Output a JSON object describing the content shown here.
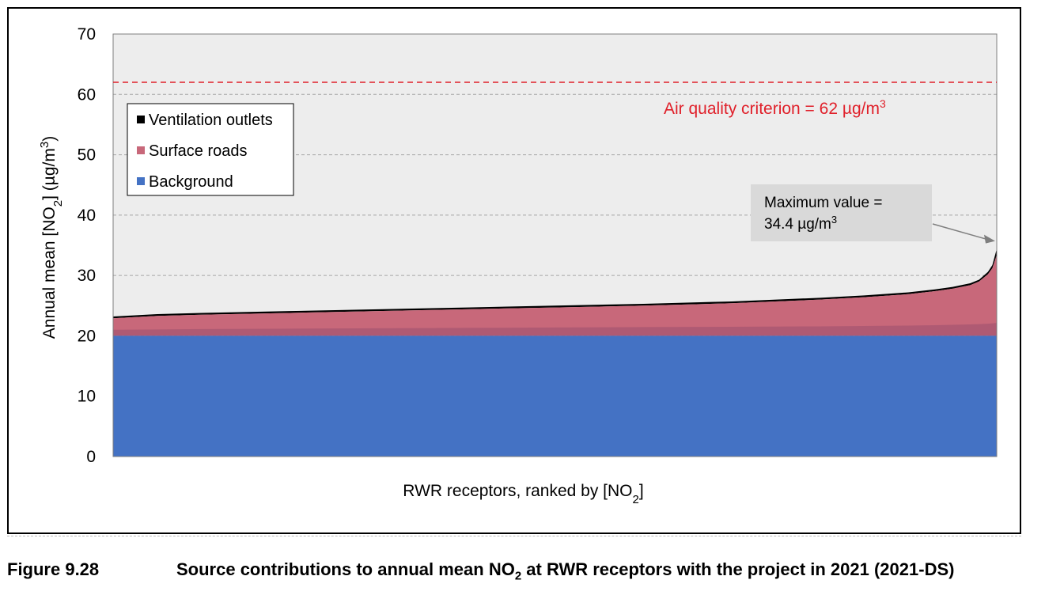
{
  "colors": {
    "background": "#4472C4",
    "surface_roads": "#C8687A",
    "surface_roads_dark": "#9A4F6E",
    "ventilation_outlets": "#000000",
    "criterion": "#E0202A",
    "plot_bg": "#EDEDED",
    "annotation_bg": "#D9D9D9"
  },
  "chart_data": {
    "type": "area",
    "stacked": true,
    "x_description": "receptors ranked by total NO2 (no x tick labels shown)",
    "xlabel_parts": [
      "RWR receptors, ranked by [NO",
      "2",
      "]"
    ],
    "ylabel_parts": [
      "Annual mean [NO",
      "2",
      "] (µg/m",
      "3",
      ")"
    ],
    "ylim": [
      0,
      70
    ],
    "yticks": [
      0,
      10,
      20,
      30,
      40,
      50,
      60,
      70
    ],
    "grid": "horizontal dashed",
    "legend_position": "top-left",
    "series_order": [
      "Background",
      "Surface roads",
      "Ventilation outlets"
    ],
    "profile_fraction": [
      0,
      0.05,
      0.1,
      0.2,
      0.3,
      0.4,
      0.5,
      0.6,
      0.7,
      0.8,
      0.85,
      0.9,
      0.93,
      0.95,
      0.97,
      0.98,
      0.99,
      0.995,
      1.0
    ],
    "series": [
      {
        "name": "Background",
        "values": [
          20.0,
          20.0,
          20.0,
          20.0,
          20.0,
          20.0,
          20.0,
          20.0,
          20.0,
          20.0,
          20.0,
          20.0,
          20.0,
          20.0,
          20.0,
          20.0,
          20.0,
          20.0,
          20.0
        ]
      },
      {
        "name": "Surface roads",
        "values": [
          2.9,
          3.3,
          3.5,
          3.8,
          4.1,
          4.4,
          4.7,
          5.0,
          5.4,
          6.0,
          6.4,
          6.9,
          7.4,
          7.8,
          8.4,
          9.0,
          10.2,
          11.2,
          13.4
        ]
      },
      {
        "name": "Ventilation outlets",
        "values": [
          0.3,
          0.3,
          0.3,
          0.3,
          0.3,
          0.3,
          0.3,
          0.3,
          0.3,
          0.3,
          0.3,
          0.3,
          0.3,
          0.3,
          0.3,
          0.3,
          0.4,
          0.5,
          1.0
        ]
      }
    ],
    "totals": [
      23.2,
      23.6,
      23.8,
      24.1,
      24.4,
      24.7,
      25.0,
      25.3,
      25.7,
      26.3,
      26.7,
      27.2,
      27.7,
      28.1,
      28.7,
      29.3,
      30.6,
      31.7,
      34.4
    ],
    "reference_line": {
      "value": 62,
      "label": "Air quality criterion = 62 µg/m",
      "label_sup": "3"
    },
    "annotation": {
      "line1": "Maximum value =",
      "line2": "34.4 µg/m",
      "line2_sup": "3",
      "value": 34.4
    }
  },
  "caption": {
    "number": "Figure 9.28",
    "text_parts": [
      "Source contributions to annual mean NO",
      "2",
      " at RWR receptors with the project in 2021 (2021-DS)"
    ]
  }
}
